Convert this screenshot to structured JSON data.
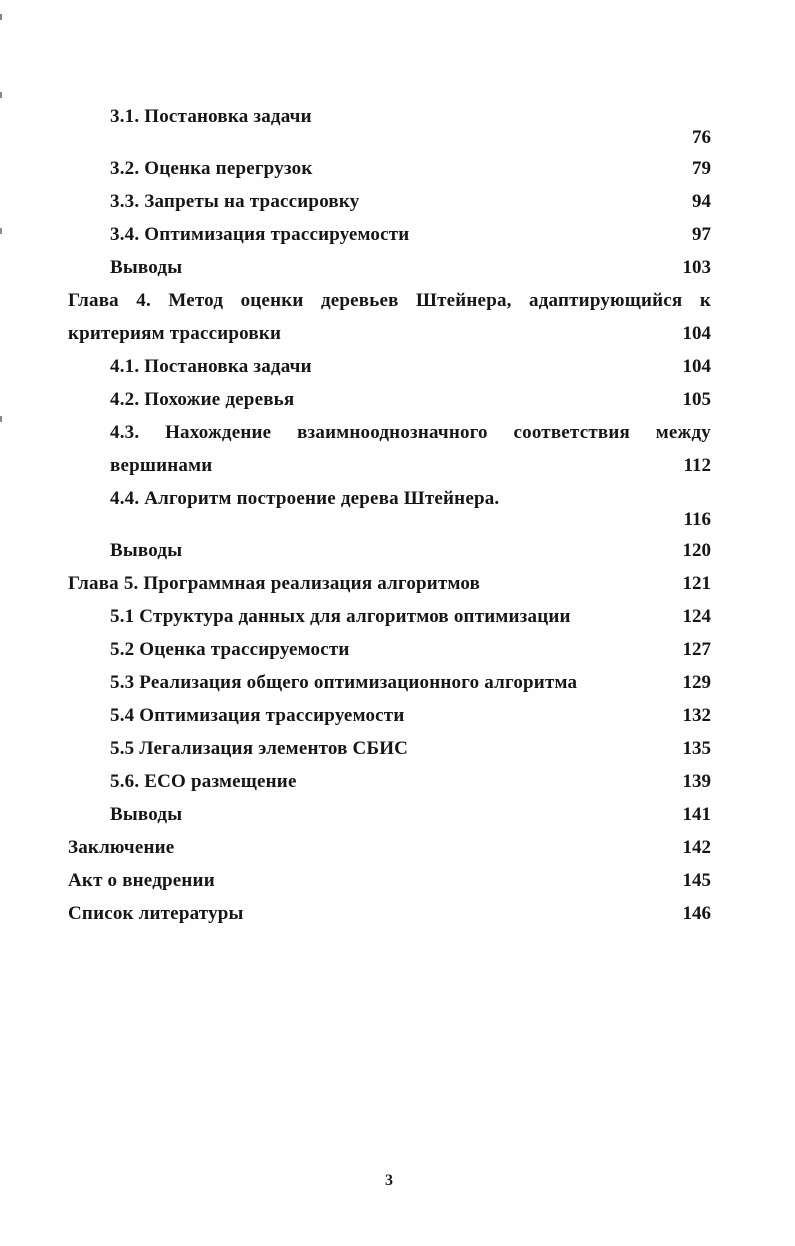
{
  "page": {
    "footer_number": "3"
  },
  "toc": {
    "entries": [
      {
        "title": "3.1. Постановка задачи",
        "page": "76",
        "indent": "sub",
        "justify": false,
        "page_below": true
      },
      {
        "title": "3.2. Оценка перегрузок",
        "page": "79",
        "indent": "sub",
        "justify": false,
        "page_below": false
      },
      {
        "title": "3.3. Запреты на трассировку",
        "page": "94",
        "indent": "sub",
        "justify": false,
        "page_below": false
      },
      {
        "title": "3.4. Оптимизация трассируемости",
        "page": "97",
        "indent": "sub",
        "justify": false,
        "page_below": false
      },
      {
        "title": "Выводы",
        "page": "103",
        "indent": "sub",
        "justify": false,
        "page_below": false
      },
      {
        "title": "Глава 4. Метод оценки деревьев Штейнера, адаптирующийся к критериям трассировки",
        "page": "104",
        "indent": "chapter",
        "justify": true,
        "page_below": false
      },
      {
        "title": "4.1. Постановка задачи",
        "page": "104",
        "indent": "sub",
        "justify": false,
        "page_below": false
      },
      {
        "title": "4.2. Похожие деревья",
        "page": "105",
        "indent": "sub",
        "justify": false,
        "page_below": false
      },
      {
        "title": "4.3. Нахождение взаимнооднозначного соответствия между вершинами",
        "page": "112",
        "indent": "sub",
        "justify": true,
        "page_below": false
      },
      {
        "title": "4.4. Алгоритм построение дерева Штейнера.",
        "page": "116",
        "indent": "sub",
        "justify": false,
        "page_below": true
      },
      {
        "title": "Выводы",
        "page": "120",
        "indent": "sub",
        "justify": false,
        "page_below": false
      },
      {
        "title": "Глава 5. Программная реализация алгоритмов",
        "page": "121",
        "indent": "chapter",
        "justify": false,
        "page_below": false
      },
      {
        "title": "5.1 Структура данных для алгоритмов оптимизации",
        "page": "124",
        "indent": "sub",
        "justify": false,
        "page_below": false
      },
      {
        "title": "5.2 Оценка трассируемости",
        "page": "127",
        "indent": "sub",
        "justify": false,
        "page_below": false
      },
      {
        "title": "5.3 Реализация общего оптимизационного алгоритма",
        "page": "129",
        "indent": "sub",
        "justify": false,
        "page_below": false
      },
      {
        "title": "5.4 Оптимизация трассируемости",
        "page": "132",
        "indent": "sub",
        "justify": false,
        "page_below": false
      },
      {
        "title": "5.5 Легализация элементов СБИС",
        "page": "135",
        "indent": "sub",
        "justify": false,
        "page_below": false
      },
      {
        "title": "5.6. ECO размещение",
        "page": "139",
        "indent": "sub",
        "justify": false,
        "page_below": false
      },
      {
        "title": "Выводы",
        "page": "141",
        "indent": "sub",
        "justify": false,
        "page_below": false
      },
      {
        "title": "Заключение",
        "page": "142",
        "indent": "chapter",
        "justify": false,
        "page_below": false
      },
      {
        "title": "Акт о внедрении",
        "page": "145",
        "indent": "chapter",
        "justify": false,
        "page_below": false
      },
      {
        "title": "Список литературы",
        "page": "146",
        "indent": "chapter",
        "justify": false,
        "page_below": false
      }
    ]
  }
}
